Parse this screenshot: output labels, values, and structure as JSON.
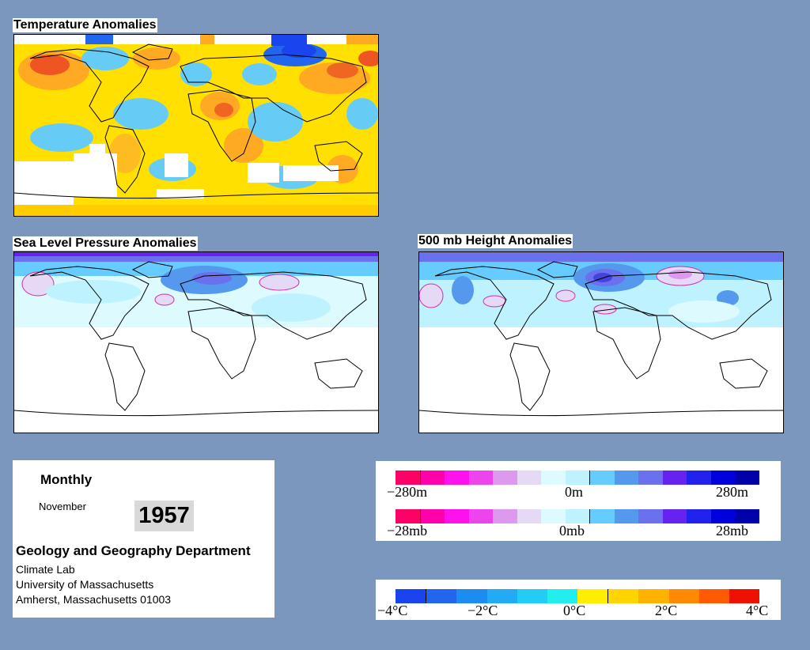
{
  "panels": {
    "temperature": {
      "title": "Temperature Anomalies"
    },
    "slp": {
      "title": "Sea Level Pressure Anomalies"
    },
    "height500": {
      "title": "500 mb Height Anomalies"
    }
  },
  "info": {
    "period": "Monthly",
    "month": "November",
    "year": "1957",
    "department": "Geology and Geography Department",
    "lab": "Climate Lab",
    "university": "University of Massachusetts",
    "address": "Amherst, Massachusetts 01003"
  },
  "legend_height": {
    "labels": [
      "−280m",
      "0m",
      "280m"
    ],
    "colors": [
      "#ff0066",
      "#ff00aa",
      "#ff11ee",
      "#ee44ee",
      "#dd99ee",
      "#e6d9f5",
      "#ddfaff",
      "#bff2ff",
      "#66ccff",
      "#5599ee",
      "#6b70ee",
      "#6622ee",
      "#2222ee",
      "#0000dd",
      "#0000aa"
    ]
  },
  "legend_pressure": {
    "labels": [
      "−28mb",
      "0mb",
      "28mb"
    ],
    "colors": [
      "#ff0066",
      "#ff00aa",
      "#ff11ee",
      "#ee44ee",
      "#dd99ee",
      "#e6d9f5",
      "#ddfaff",
      "#bff2ff",
      "#66ccff",
      "#5599ee",
      "#6b70ee",
      "#6622ee",
      "#2222ee",
      "#0000dd",
      "#0000aa"
    ]
  },
  "legend_temperature": {
    "labels": [
      "−4°C",
      "−2°C",
      "0°C",
      "2°C",
      "4°C"
    ],
    "colors": [
      "#1a44ee",
      "#2266ee",
      "#1d8cf0",
      "#22aaf5",
      "#22ccf5",
      "#22eeee",
      "#ffee00",
      "#ffd400",
      "#ffb300",
      "#ff8a00",
      "#ff5a00",
      "#ee1100"
    ]
  }
}
